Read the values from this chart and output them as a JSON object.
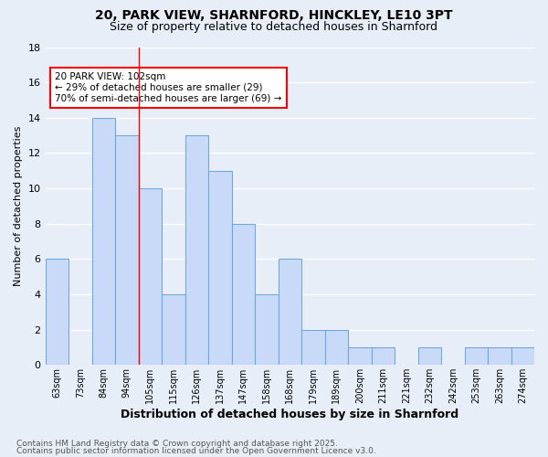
{
  "title1": "20, PARK VIEW, SHARNFORD, HINCKLEY, LE10 3PT",
  "title2": "Size of property relative to detached houses in Sharnford",
  "xlabel": "Distribution of detached houses by size in Sharnford",
  "ylabel": "Number of detached properties",
  "bar_labels": [
    "63sqm",
    "73sqm",
    "84sqm",
    "94sqm",
    "105sqm",
    "115sqm",
    "126sqm",
    "137sqm",
    "147sqm",
    "158sqm",
    "168sqm",
    "179sqm",
    "189sqm",
    "200sqm",
    "211sqm",
    "221sqm",
    "232sqm",
    "242sqm",
    "253sqm",
    "263sqm",
    "274sqm"
  ],
  "bar_values": [
    6,
    0,
    14,
    13,
    10,
    4,
    13,
    11,
    8,
    4,
    6,
    2,
    2,
    1,
    1,
    0,
    1,
    0,
    1,
    1,
    1
  ],
  "bar_color": "#c9daf8",
  "bar_edge_color": "#6fa8dc",
  "annotation_text": "20 PARK VIEW: 102sqm\n← 29% of detached houses are smaller (29)\n70% of semi-detached houses are larger (69) →",
  "annotation_box_color": "white",
  "annotation_box_edge_color": "red",
  "red_line_bin": 4,
  "ylim": [
    0,
    18
  ],
  "yticks": [
    0,
    2,
    4,
    6,
    8,
    10,
    12,
    14,
    16,
    18
  ],
  "footnote1": "Contains HM Land Registry data © Crown copyright and database right 2025.",
  "footnote2": "Contains public sector information licensed under the Open Government Licence v3.0.",
  "background_color": "#e8eef8",
  "plot_bg_color": "#e8eef8",
  "grid_color": "white",
  "title1_fontsize": 10,
  "title2_fontsize": 9,
  "xlabel_fontsize": 9,
  "ylabel_fontsize": 8,
  "tick_fontsize": 7,
  "annotation_fontsize": 7.5,
  "footnote_fontsize": 6.5
}
